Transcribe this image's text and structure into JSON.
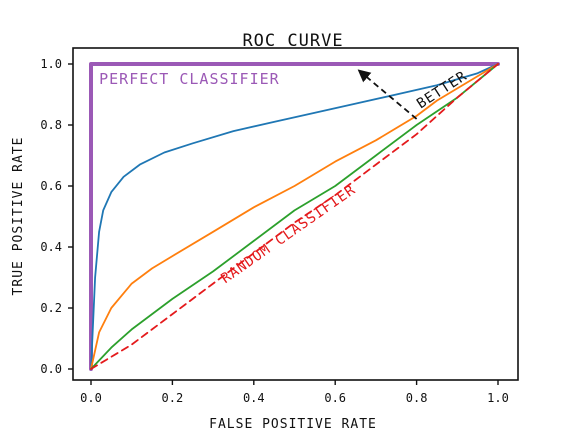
{
  "chart_data": {
    "type": "line",
    "title": "ROC CURVE",
    "xlabel": "FALSE POSITIVE RATE",
    "ylabel": "TRUE POSITIVE RATE",
    "xlim": [
      0.0,
      1.0
    ],
    "ylim": [
      0.0,
      1.0
    ],
    "x_ticks": [
      "0.0",
      "0.2",
      "0.4",
      "0.6",
      "0.8",
      "1.0"
    ],
    "y_ticks": [
      "0.0",
      "0.2",
      "0.4",
      "0.6",
      "0.8",
      "1.0"
    ],
    "grid": false,
    "series": [
      {
        "color": "#9b59b6",
        "style": "solid-thick",
        "x": [
          0.0,
          0.0,
          1.0
        ],
        "y": [
          0.0,
          1.0,
          1.0
        ]
      },
      {
        "color": "#1f77b4",
        "style": "solid",
        "x": [
          0.0,
          0.01,
          0.02,
          0.03,
          0.05,
          0.08,
          0.12,
          0.18,
          0.25,
          0.35,
          0.45,
          0.55,
          0.65,
          0.75,
          0.85,
          0.95,
          1.0
        ],
        "y": [
          0.0,
          0.3,
          0.45,
          0.52,
          0.58,
          0.63,
          0.67,
          0.71,
          0.74,
          0.78,
          0.81,
          0.84,
          0.87,
          0.9,
          0.93,
          0.97,
          1.0
        ]
      },
      {
        "color": "#ff7f0e",
        "style": "solid",
        "x": [
          0.0,
          0.02,
          0.05,
          0.1,
          0.15,
          0.2,
          0.3,
          0.4,
          0.5,
          0.6,
          0.7,
          0.8,
          0.85,
          0.9,
          1.0
        ],
        "y": [
          0.0,
          0.12,
          0.2,
          0.28,
          0.33,
          0.37,
          0.45,
          0.53,
          0.6,
          0.68,
          0.75,
          0.83,
          0.88,
          0.92,
          1.0
        ]
      },
      {
        "color": "#2ca02c",
        "style": "solid",
        "x": [
          0.0,
          0.05,
          0.1,
          0.2,
          0.3,
          0.4,
          0.5,
          0.6,
          0.7,
          0.8,
          0.9,
          1.0
        ],
        "y": [
          0.0,
          0.07,
          0.13,
          0.23,
          0.32,
          0.42,
          0.52,
          0.6,
          0.7,
          0.8,
          0.89,
          1.0
        ]
      },
      {
        "color": "#e41a1c",
        "style": "dashed",
        "x": [
          0.0,
          0.1,
          0.2,
          0.3,
          0.4,
          0.5,
          0.6,
          0.7,
          0.8,
          0.9,
          1.0
        ],
        "y": [
          0.0,
          0.08,
          0.18,
          0.28,
          0.38,
          0.48,
          0.57,
          0.67,
          0.77,
          0.89,
          1.0
        ]
      }
    ],
    "annotations": [
      {
        "text": "PERFECT CLASSIFIER",
        "color": "#9b59b6",
        "x": 0.02,
        "y": 0.98
      },
      {
        "text": "RANDOM CLASSIFIER",
        "color": "#e41a1c",
        "x": 0.33,
        "y": 0.28
      },
      {
        "text": "BETTER",
        "color": "#111111",
        "arrow_from": [
          0.8,
          0.82
        ],
        "arrow_to": [
          0.65,
          0.99
        ]
      }
    ]
  }
}
